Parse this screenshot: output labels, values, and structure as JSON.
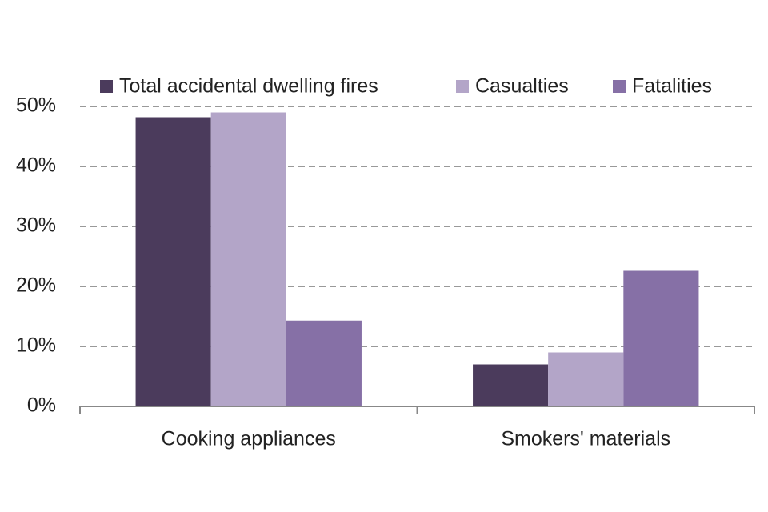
{
  "chart_data": {
    "type": "bar",
    "categories": [
      "Cooking appliances",
      "Smokers' materials"
    ],
    "series": [
      {
        "name": "Total accidental dwelling fires",
        "color": "#4b3b5c",
        "values": [
          48.2,
          7.0
        ]
      },
      {
        "name": "Casualties",
        "color": "#b3a5c8",
        "values": [
          49.0,
          9.0
        ]
      },
      {
        "name": "Fatalities",
        "color": "#8670a6",
        "values": [
          14.3,
          22.6
        ]
      }
    ],
    "ylim": [
      0,
      50
    ],
    "yticks": [
      {
        "value": 0,
        "label": "0%"
      },
      {
        "value": 10,
        "label": "10%"
      },
      {
        "value": 20,
        "label": "20%"
      },
      {
        "value": 30,
        "label": "30%"
      },
      {
        "value": 40,
        "label": "40%"
      },
      {
        "value": 50,
        "label": "50%"
      }
    ],
    "grid": true,
    "legend": "top"
  }
}
